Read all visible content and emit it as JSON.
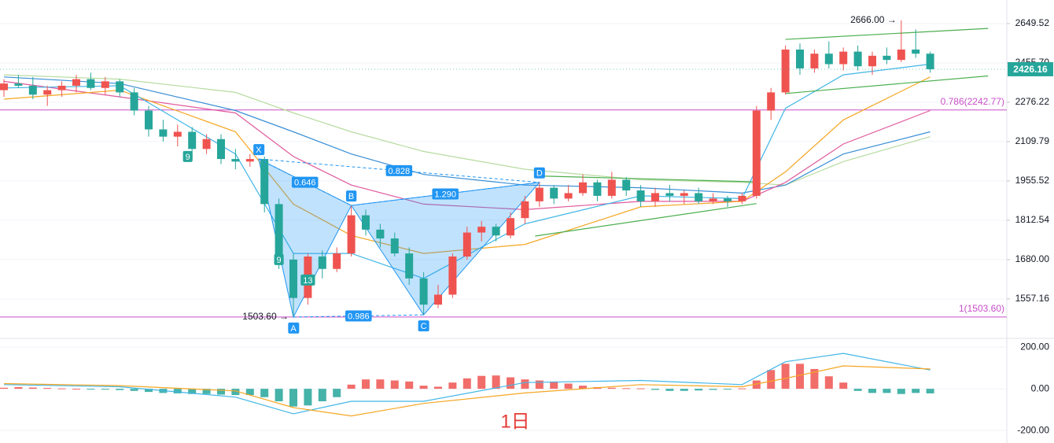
{
  "chart_data": [
    {
      "type": "candlestick",
      "log_scale": true,
      "grid": true,
      "up_color": "#ef5350",
      "down_color": "#26a69a",
      "open": [
        2330,
        2360,
        2350,
        2310,
        2330,
        2350,
        2380,
        2340,
        2370,
        2320,
        2240,
        2160,
        2130,
        2150,
        2080,
        2120,
        2040,
        2030,
        2040,
        1870,
        1680,
        1560,
        1690,
        1650,
        1700,
        1830,
        1780,
        1750,
        1700,
        1620,
        1540,
        1570,
        1690,
        1770,
        1790,
        1760,
        1820,
        1880,
        1930,
        1890,
        1910,
        1950,
        1900,
        1960,
        1920,
        1880,
        1910,
        1900,
        1910,
        1880,
        1890,
        1880,
        1900,
        2240,
        2320,
        2520,
        2430,
        2500,
        2450,
        2510,
        2440,
        2490,
        2470,
        2520,
        2500
      ],
      "high": [
        2380,
        2400,
        2390,
        2350,
        2370,
        2400,
        2410,
        2390,
        2380,
        2340,
        2260,
        2200,
        2180,
        2170,
        2140,
        2140,
        2080,
        2060,
        2050,
        1890,
        1700,
        1700,
        1710,
        1720,
        1865,
        1850,
        1800,
        1770,
        1720,
        1640,
        1600,
        1700,
        1790,
        1810,
        1800,
        1840,
        1900,
        1950,
        1940,
        1940,
        1980,
        1960,
        1990,
        1970,
        1940,
        1930,
        1940,
        1920,
        1930,
        1910,
        1900,
        1910,
        2260,
        2340,
        2540,
        2550,
        2520,
        2560,
        2530,
        2540,
        2510,
        2530,
        2666,
        2620,
        2510
      ],
      "low": [
        2300,
        2340,
        2290,
        2260,
        2300,
        2320,
        2330,
        2310,
        2300,
        2220,
        2130,
        2110,
        2090,
        2040,
        2060,
        2020,
        2000,
        2010,
        1840,
        1650,
        1503.6,
        1540,
        1620,
        1640,
        1690,
        1760,
        1720,
        1690,
        1600,
        1510,
        1530,
        1560,
        1680,
        1740,
        1740,
        1750,
        1800,
        1860,
        1870,
        1880,
        1900,
        1880,
        1890,
        1900,
        1860,
        1860,
        1880,
        1870,
        1870,
        1870,
        1860,
        1870,
        1890,
        2200,
        2310,
        2400,
        2410,
        2430,
        2420,
        2420,
        2400,
        2450,
        2460,
        2480,
        2410
      ],
      "close": [
        2360,
        2350,
        2310,
        2330,
        2350,
        2380,
        2340,
        2370,
        2320,
        2240,
        2160,
        2130,
        2150,
        2080,
        2120,
        2040,
        2030,
        2040,
        1870,
        1680,
        1560,
        1690,
        1650,
        1700,
        1830,
        1780,
        1750,
        1700,
        1620,
        1540,
        1570,
        1690,
        1770,
        1790,
        1760,
        1820,
        1880,
        1930,
        1890,
        1910,
        1950,
        1900,
        1960,
        1920,
        1880,
        1910,
        1900,
        1910,
        1880,
        1890,
        1880,
        1900,
        2240,
        2320,
        2520,
        2430,
        2500,
        2450,
        2510,
        2440,
        2490,
        2470,
        2520,
        2500,
        2426.16
      ],
      "ylim": [
        1443,
        2773
      ],
      "yticks": [
        2649.52,
        {
          "value": 2455.7,
          "label": "2455.70"
        },
        2276.22,
        2109.79,
        1955.52,
        1812.54,
        {
          "value": 1680,
          "label": "1680.00"
        },
        1557.16
      ],
      "moving_averages": [
        {
          "color": "#b7dba0",
          "x": [
            0,
            8,
            16,
            20,
            24,
            29,
            36,
            44,
            51,
            54,
            58,
            64
          ],
          "values": [
            2400,
            2380,
            2320,
            2230,
            2150,
            2070,
            2000,
            1960,
            1950,
            1940,
            2030,
            2130
          ]
        },
        {
          "color": "#3a8fd6",
          "x": [
            0,
            8,
            16,
            20,
            24,
            29,
            36,
            44,
            51,
            54,
            58,
            64
          ],
          "values": [
            2390,
            2360,
            2240,
            2150,
            2060,
            1980,
            1940,
            1930,
            1910,
            1940,
            2060,
            2150
          ]
        },
        {
          "color": "#e05a9d",
          "x": [
            0,
            8,
            16,
            20,
            24,
            29,
            36,
            44,
            51,
            54,
            58,
            64
          ],
          "values": [
            2370,
            2300,
            2230,
            2050,
            1940,
            1870,
            1850,
            1880,
            1880,
            1950,
            2100,
            2240
          ]
        },
        {
          "color": "#f5a623",
          "x": [
            0,
            8,
            16,
            20,
            24,
            29,
            36,
            44,
            51,
            54,
            58,
            64
          ],
          "values": [
            2290,
            2330,
            2150,
            1870,
            1760,
            1700,
            1730,
            1860,
            1880,
            1990,
            2200,
            2390
          ]
        },
        {
          "color": "#41b6e6",
          "x": [
            0,
            8,
            16,
            20,
            24,
            29,
            36,
            44,
            51,
            54,
            58,
            64
          ],
          "values": [
            2340,
            2350,
            2060,
            1700,
            1700,
            1620,
            1800,
            1900,
            1890,
            2250,
            2400,
            2450
          ]
        }
      ],
      "levels": [
        {
          "label": "0.786(2242.77)",
          "value": 2242.77,
          "color": "#c94fc9"
        },
        {
          "label": "1(1503.60)",
          "value": 1503.6,
          "color": "#c94fc9"
        }
      ],
      "trendlines": [
        {
          "color": "#4caf50",
          "x": [
            54,
            68
          ],
          "values": [
            2570,
            2625
          ]
        },
        {
          "color": "#4caf50",
          "x": [
            54,
            68
          ],
          "values": [
            2315,
            2395
          ]
        },
        {
          "color": "#4caf50",
          "x": [
            36.7,
            52
          ],
          "values": [
            1758,
            1872
          ]
        },
        {
          "color": "#4caf50",
          "x": [
            37.2,
            52
          ],
          "values": [
            1974,
            1952
          ]
        }
      ],
      "pattern": {
        "color": "#2196f3",
        "points": [
          {
            "label": "X",
            "x": 17.6,
            "value": 2040
          },
          {
            "label": "A",
            "x": 20,
            "value": 1503.6
          },
          {
            "label": "B",
            "x": 24,
            "value": 1865
          },
          {
            "label": "C",
            "x": 29,
            "value": 1510
          },
          {
            "label": "D",
            "x": 37,
            "value": 1950
          }
        ],
        "ratios": [
          "0.646",
          "0.828",
          "1.290",
          "0.986"
        ]
      },
      "annotations": [
        {
          "label": "2666.00 →",
          "x": 62,
          "value": 2666
        },
        {
          "label": "1503.60 →",
          "x": 20,
          "value": 1503.6
        }
      ],
      "markers": [
        {
          "label": "9",
          "x": 12.7,
          "value": 2050,
          "color": "#26a69a"
        },
        {
          "label": "9",
          "x": 19,
          "value": 1680,
          "color": "#26a69a"
        },
        {
          "label": "13",
          "x": 21,
          "value": 1615,
          "color": "#26a69a"
        }
      ],
      "last_price": 2426.16,
      "last_price_color": "#26a69a"
    },
    {
      "type": "macd",
      "grid": true,
      "up_color": "#ef5350",
      "down_color": "#26a69a",
      "histogram": [
        5,
        8,
        6,
        4,
        2,
        0,
        -2,
        -4,
        -6,
        -10,
        -15,
        -20,
        -22,
        -25,
        -25,
        -28,
        -30,
        -30,
        -40,
        -60,
        -85,
        -80,
        -60,
        -40,
        20,
        45,
        45,
        40,
        35,
        15,
        10,
        30,
        50,
        62,
        64,
        55,
        45,
        40,
        35,
        25,
        15,
        8,
        5,
        3,
        2,
        -5,
        -10,
        -10,
        -8,
        -5,
        -3,
        2,
        40,
        90,
        120,
        120,
        95,
        60,
        30,
        -10,
        -20,
        -20,
        -25,
        -20,
        -22
      ],
      "lines": [
        {
          "color": "#41b6e6",
          "x": [
            0,
            8,
            16,
            20,
            24,
            29,
            36,
            44,
            51,
            54,
            58,
            64
          ],
          "values": [
            20,
            10,
            -40,
            -120,
            -60,
            -60,
            30,
            40,
            20,
            130,
            170,
            90
          ]
        },
        {
          "color": "#f5a623",
          "x": [
            0,
            8,
            16,
            20,
            24,
            29,
            36,
            44,
            51,
            54,
            58,
            64
          ],
          "values": [
            25,
            15,
            -10,
            -90,
            -130,
            -70,
            -20,
            20,
            10,
            50,
            110,
            95
          ]
        }
      ],
      "ylim": [
        -260,
        242
      ],
      "yticks": [
        {
          "value": 200,
          "label": "200.00"
        },
        {
          "value": 0,
          "label": "0.00"
        },
        {
          "value": -200,
          "label": "-200.00"
        }
      ],
      "interval_label": "1日",
      "interval_color": "#e53935"
    }
  ]
}
